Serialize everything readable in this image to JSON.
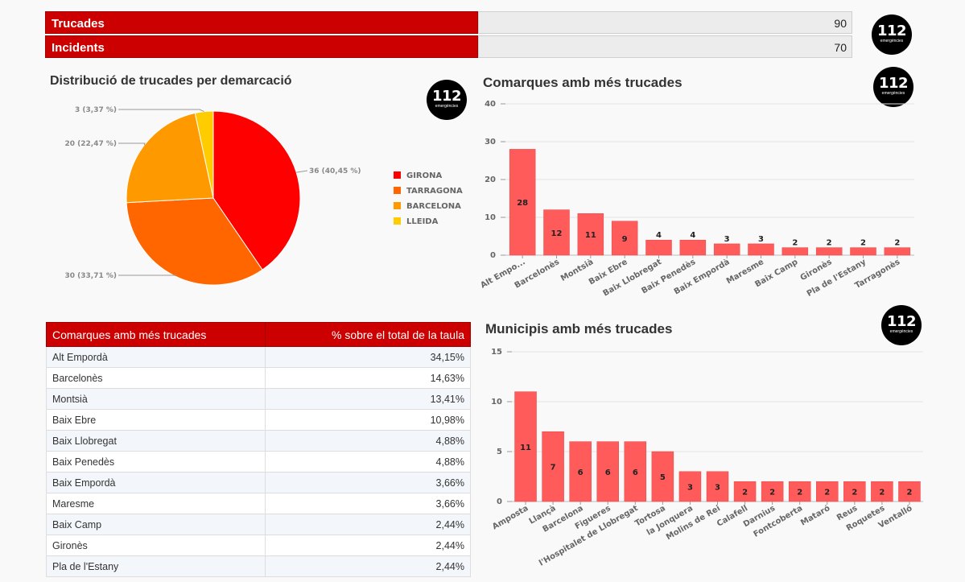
{
  "kpis": [
    {
      "label": "Trucades",
      "value": "90"
    },
    {
      "label": "Incidents",
      "value": "70"
    }
  ],
  "logo": {
    "number": "112",
    "subtitle": "emergències"
  },
  "colors": {
    "accent": "#cc0000",
    "bar": "#ff5b5b"
  },
  "pie": {
    "title": "Distribució de trucades per demarcació",
    "chart_data": {
      "type": "pie",
      "labels": [
        "GIRONA",
        "TARRAGONA",
        "BARCELONA",
        "LLEIDA"
      ],
      "values": [
        36,
        30,
        20,
        3
      ],
      "percent_labels": [
        "36 (40,45 %)",
        "30 (33,71 %)",
        "20 (22,47 %)",
        "3 (3,37 %)"
      ],
      "colors": [
        "#ff0000",
        "#ff6600",
        "#ff9900",
        "#ffcc00"
      ]
    }
  },
  "comarques_chart": {
    "title": "Comarques amb més trucades",
    "chart_data": {
      "type": "bar",
      "categories": [
        "Alt Empo...",
        "Barcelonès",
        "Montsià",
        "Baix Ebre",
        "Baix Llobregat",
        "Baix Penedès",
        "Baix Empordà",
        "Maresme",
        "Baix Camp",
        "Gironès",
        "Pla de l'Estany",
        "Tarragonès"
      ],
      "values": [
        28,
        12,
        11,
        9,
        4,
        4,
        3,
        3,
        2,
        2,
        2,
        2
      ],
      "ylim": [
        0,
        40
      ],
      "yticks": [
        0,
        10,
        20,
        30,
        40
      ]
    }
  },
  "municipis_chart": {
    "title": "Municipis amb més trucades",
    "chart_data": {
      "type": "bar",
      "categories": [
        "Amposta",
        "Llançà",
        "Barcelona",
        "Figueres",
        "l'Hospitalet de Llobregat",
        "Tortosa",
        "la Jonquera",
        "Molins de Rei",
        "Calafell",
        "Darnius",
        "Fontcoberta",
        "Mataró",
        "Reus",
        "Roquetes",
        "Ventalló"
      ],
      "values": [
        11,
        7,
        6,
        6,
        6,
        5,
        3,
        3,
        2,
        2,
        2,
        2,
        2,
        2,
        2
      ],
      "ylim": [
        0,
        15
      ],
      "yticks": [
        0,
        5,
        10,
        15
      ]
    }
  },
  "table": {
    "headers": [
      "Comarques amb més trucades",
      "% sobre el total de la taula"
    ],
    "rows": [
      [
        "Alt Empordà",
        "34,15%"
      ],
      [
        "Barcelonès",
        "14,63%"
      ],
      [
        "Montsià",
        "13,41%"
      ],
      [
        "Baix Ebre",
        "10,98%"
      ],
      [
        "Baix Llobregat",
        "4,88%"
      ],
      [
        "Baix Penedès",
        "4,88%"
      ],
      [
        "Baix Empordà",
        "3,66%"
      ],
      [
        "Maresme",
        "3,66%"
      ],
      [
        "Baix Camp",
        "2,44%"
      ],
      [
        "Gironès",
        "2,44%"
      ],
      [
        "Pla de l'Estany",
        "2,44%"
      ]
    ]
  }
}
